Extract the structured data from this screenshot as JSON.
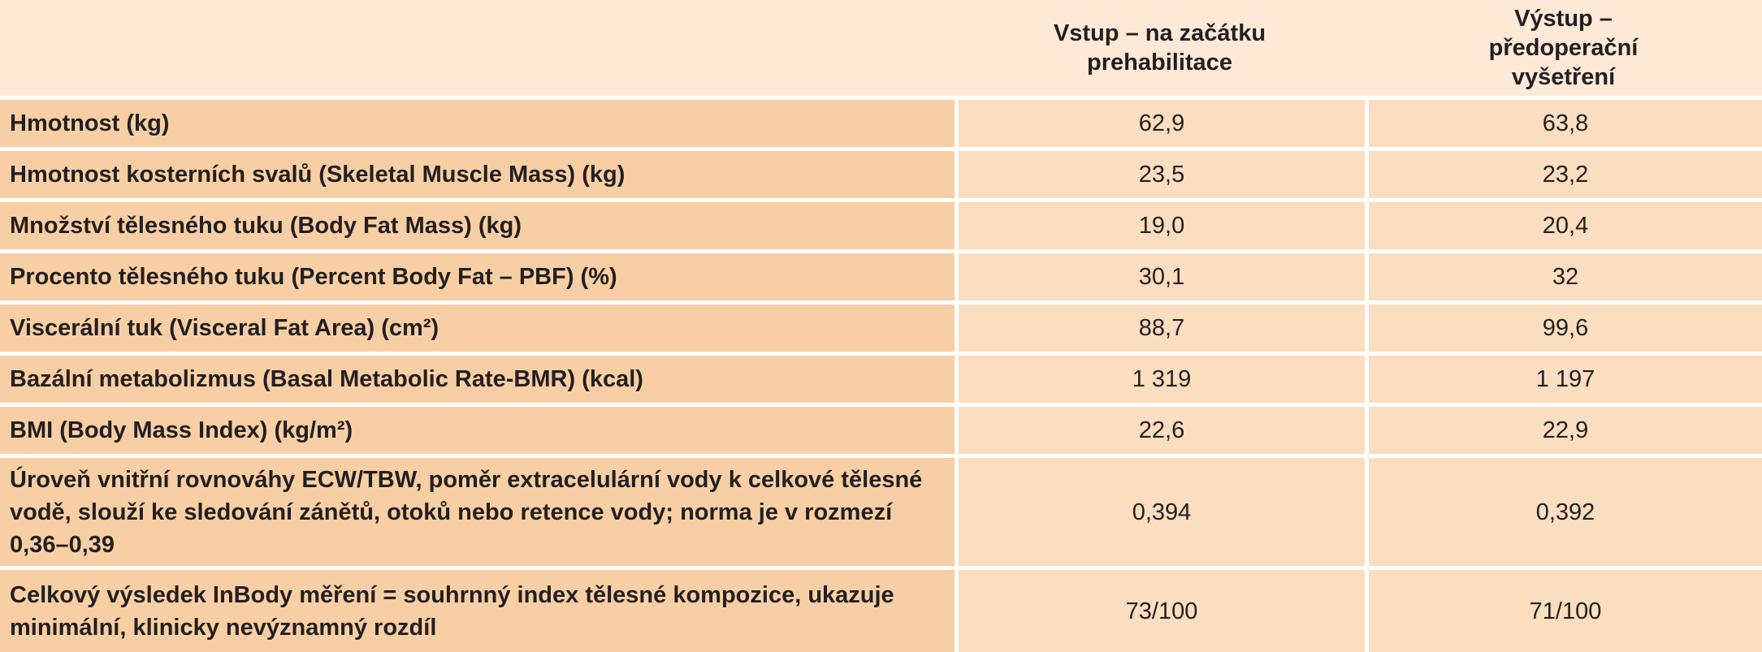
{
  "table": {
    "header": {
      "columns": [
        "Vstup – na začátku prehabilitace",
        "Výstup – předoperační vyšetření"
      ]
    },
    "rows": [
      [
        "Hmotnost (kg)",
        "62,9",
        "63,8"
      ],
      [
        "Hmotnost kosterních svalů (Skeletal Muscle Mass) (kg)",
        "23,5",
        "23,2"
      ],
      [
        "Množství tělesného tuku (Body Fat Mass) (kg)",
        "19,0",
        "20,4"
      ],
      [
        "Procento tělesného tuku (Percent Body Fat – PBF) (%)",
        "30,1",
        "32"
      ],
      [
        "Viscerální tuk (Visceral Fat Area) (cm²)",
        "88,7",
        "99,6"
      ],
      [
        "Bazální metabolizmus (Basal Metabolic Rate-BMR) (kcal)",
        "1 319",
        "1 197"
      ],
      [
        "BMI (Body Mass Index) (kg/m²)",
        "22,6",
        "22,9"
      ],
      [
        "Úroveň vnitřní rovnováhy ECW/TBW, poměr extracelulární vody k celkové tělesné vodě, slouží ke sledování zánětů, otoků nebo retence vody; norma je v rozmezí 0,36–0,39",
        "0,394",
        "0,392"
      ],
      [
        "Celkový výsledek InBody měření = souhrnný index tělesné kompozice, ukazuje minimální, klinicky nevýznamný rozdíl",
        "73/100",
        "71/100"
      ]
    ]
  }
}
